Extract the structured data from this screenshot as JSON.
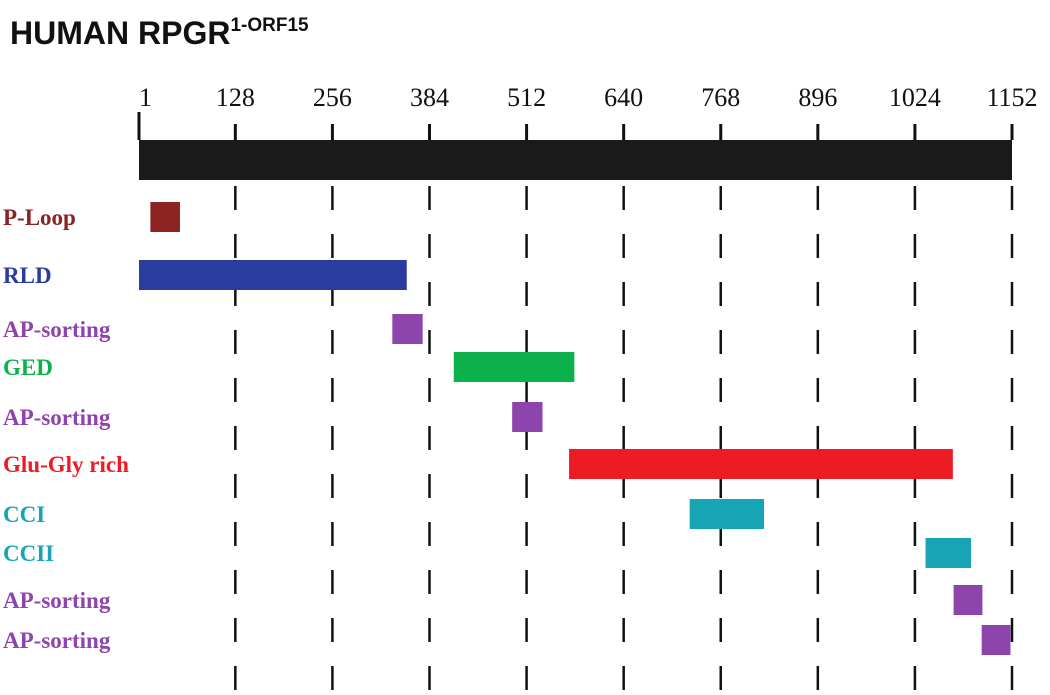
{
  "title": {
    "main": "HUMAN RPGR",
    "superscript": "1-ORF15"
  },
  "axis": {
    "start": 1,
    "end": 1152,
    "ticks": [
      1,
      128,
      256,
      384,
      512,
      640,
      768,
      896,
      1024,
      1152
    ],
    "tick_labels": [
      "1",
      "128",
      "256",
      "384",
      "512",
      "640",
      "768",
      "896",
      "1024",
      "1152"
    ],
    "protein_bar_color": "#1a1a1a"
  },
  "gridlines": {
    "positions": [
      128,
      256,
      384,
      512,
      640,
      768,
      896,
      1024,
      1152
    ],
    "style": "dashed"
  },
  "domains": [
    {
      "label": "P-Loop",
      "start": 16,
      "end": 55,
      "color": "#8b2323"
    },
    {
      "label": "RLD",
      "start": 1,
      "end": 354,
      "color": "#2a3c9e"
    },
    {
      "label": "AP-sorting",
      "start": 335,
      "end": 375,
      "color": "#8e44ad"
    },
    {
      "label": "GED",
      "start": 416,
      "end": 575,
      "color": "#0cb14b"
    },
    {
      "label": "AP-sorting",
      "start": 493,
      "end": 533,
      "color": "#8e44ad"
    },
    {
      "label": "Glu-Gly rich",
      "start": 568,
      "end": 1074,
      "color": "#ed1c24"
    },
    {
      "label": "CCI",
      "start": 727,
      "end": 825,
      "color": "#17a5b5"
    },
    {
      "label": "CCII",
      "start": 1038,
      "end": 1098,
      "color": "#17a5b5"
    },
    {
      "label": "AP-sorting",
      "start": 1075,
      "end": 1113,
      "color": "#8e44ad"
    },
    {
      "label": "AP-sorting",
      "start": 1112,
      "end": 1150,
      "color": "#8e44ad"
    }
  ]
}
